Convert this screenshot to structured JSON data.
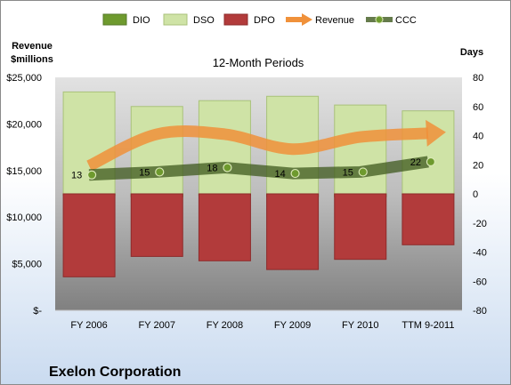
{
  "chart_data": {
    "type": "bar",
    "title": "12-Month Periods",
    "company": "Exelon Corporation",
    "left_axis_label": [
      "Revenue",
      "$millions"
    ],
    "right_axis_label": "Days",
    "categories": [
      "FY 2006",
      "FY 2007",
      "FY 2008",
      "FY 2009",
      "FY 2010",
      "TTM 9-2011"
    ],
    "left_ylim": [
      0,
      25000
    ],
    "left_ticks": [
      0,
      5000,
      10000,
      15000,
      20000,
      25000
    ],
    "left_tick_labels": [
      "$-",
      "$5,000",
      "$10,000",
      "$15,000",
      "$20,000",
      "$25,000"
    ],
    "right_ylim": [
      -80,
      80
    ],
    "right_ticks": [
      -80,
      -60,
      -40,
      -20,
      0,
      20,
      40,
      60,
      80
    ],
    "right_tick_labels": [
      "-80",
      "-60",
      "-40",
      "-20",
      "0",
      "20",
      "40",
      "60",
      "80"
    ],
    "legend": [
      {
        "name": "DIO",
        "kind": "bar",
        "color": "#6E9A2E"
      },
      {
        "name": "DSO",
        "kind": "bar",
        "color": "#CFE3A6"
      },
      {
        "name": "DPO",
        "kind": "bar",
        "color": "#B23B3B"
      },
      {
        "name": "Revenue",
        "kind": "arrow",
        "color": "#F0913A"
      },
      {
        "name": "CCC",
        "kind": "line-marker",
        "color": "#4E6B2A"
      }
    ],
    "series": [
      {
        "name": "DIO",
        "axis": "right",
        "values": [
          -1,
          -2,
          -1,
          -2,
          -2,
          0
        ]
      },
      {
        "name": "DSO",
        "axis": "right",
        "values": [
          70,
          60,
          64,
          67,
          61,
          57
        ]
      },
      {
        "name": "DPO",
        "axis": "right",
        "values": [
          -57,
          -43,
          -46,
          -52,
          -45,
          -35
        ]
      },
      {
        "name": "Revenue",
        "axis": "left",
        "values": [
          15500,
          18900,
          18900,
          17300,
          18600,
          19000
        ]
      },
      {
        "name": "CCC",
        "axis": "right",
        "values": [
          13,
          15,
          18,
          14,
          15,
          22
        ]
      }
    ],
    "ccc_labels": [
      "13",
      "15",
      "18",
      "14",
      "15",
      "22"
    ],
    "grid": false,
    "legend_position": "top"
  }
}
